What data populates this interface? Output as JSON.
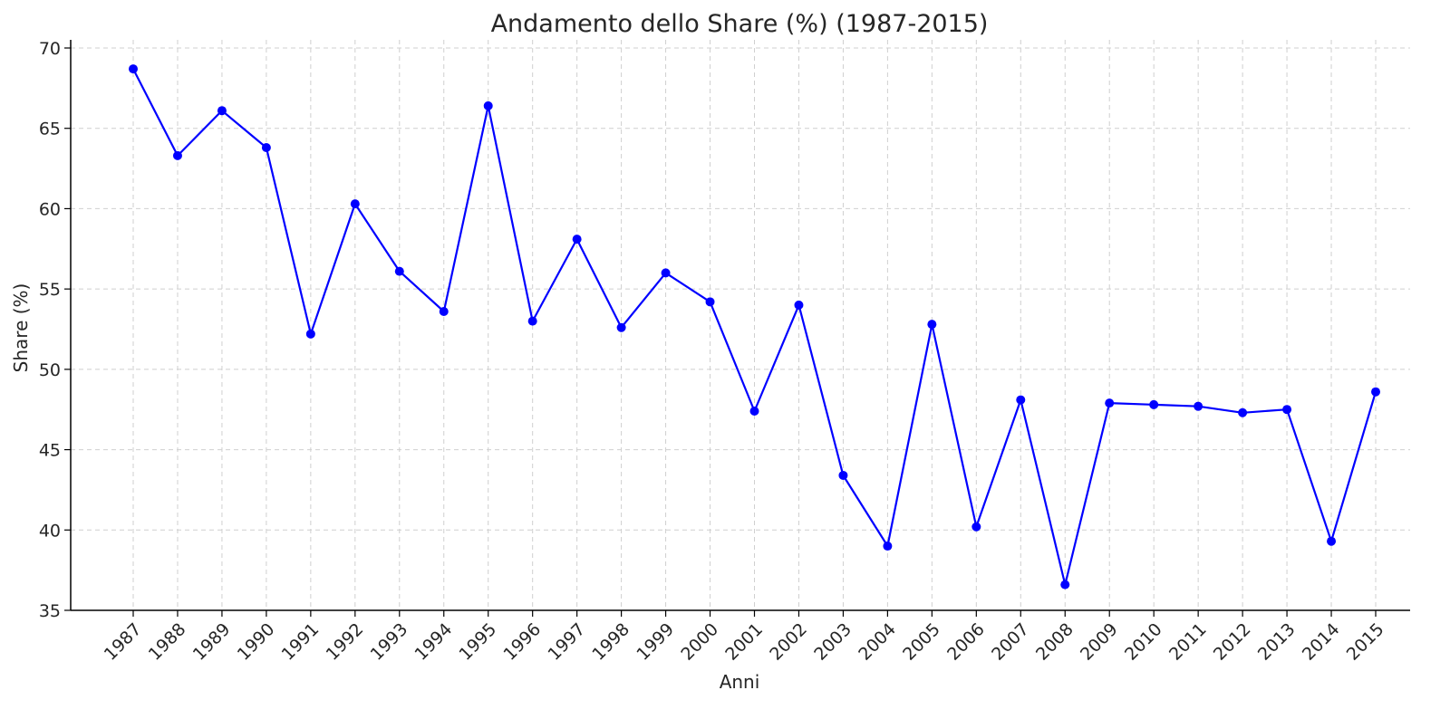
{
  "chart_data": {
    "type": "line",
    "title": "Andamento dello Share (%) (1987-2015)",
    "xlabel": "Anni",
    "ylabel": "Share (%)",
    "ylim": [
      35,
      70
    ],
    "yticks": [
      35,
      40,
      45,
      50,
      55,
      60,
      65,
      70
    ],
    "grid": true,
    "line_color": "#0000ff",
    "categories": [
      "1987",
      "1988",
      "1989",
      "1990",
      "1991",
      "1992",
      "1993",
      "1994",
      "1995",
      "1996",
      "1997",
      "1998",
      "1999",
      "2000",
      "2001",
      "2002",
      "2003",
      "2004",
      "2005",
      "2006",
      "2007",
      "2008",
      "2009",
      "2010",
      "2011",
      "2012",
      "2013",
      "2014",
      "2015"
    ],
    "values": [
      68.7,
      63.3,
      66.1,
      63.8,
      52.2,
      60.3,
      56.1,
      53.6,
      66.4,
      53.0,
      58.1,
      52.6,
      56.0,
      54.2,
      47.4,
      54.0,
      43.4,
      39.0,
      52.8,
      40.2,
      48.1,
      36.6,
      47.9,
      47.8,
      47.7,
      47.3,
      47.5,
      39.3,
      48.6
    ]
  }
}
